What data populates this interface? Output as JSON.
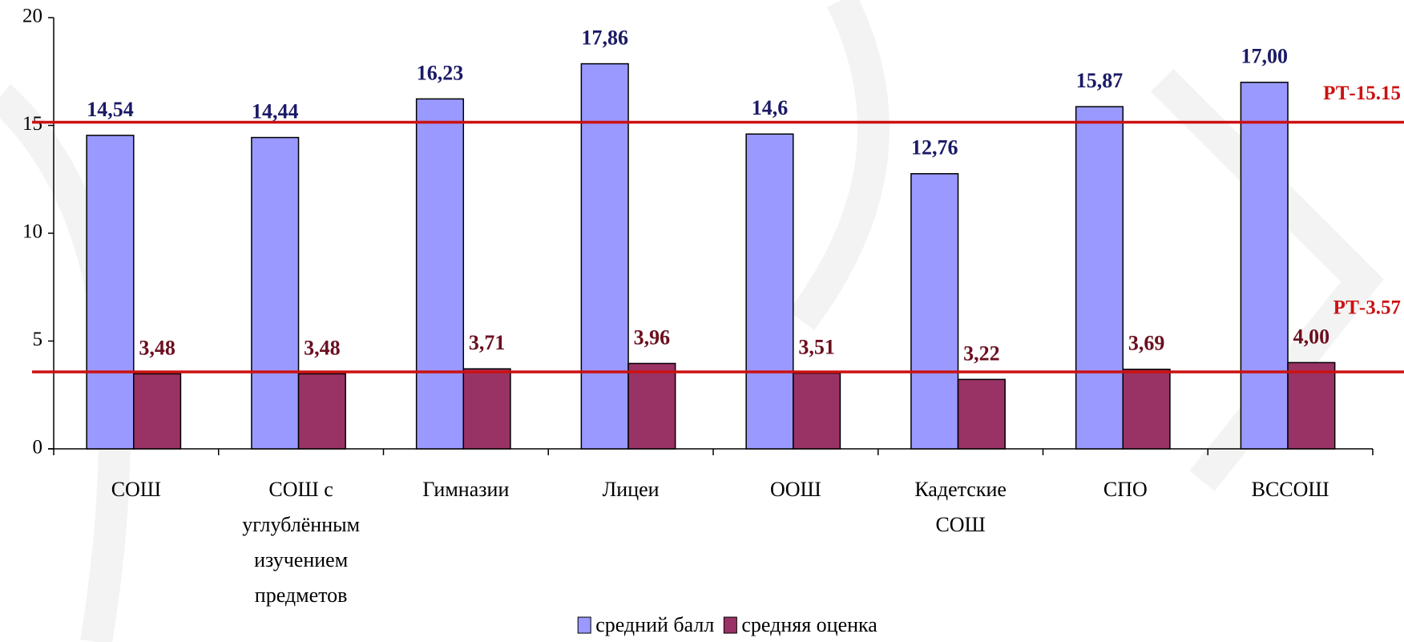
{
  "chart_data": {
    "type": "bar",
    "categories": [
      "СОШ",
      "СОШ с углублённым изучением предметов",
      "Гимназии",
      "Лицеи",
      "ООШ",
      "Кадетские СОШ",
      "СПО",
      "ВССОШ"
    ],
    "series": [
      {
        "name": "средний балл",
        "color": "#9999ff",
        "values": [
          14.54,
          14.44,
          16.23,
          17.86,
          14.6,
          12.76,
          15.87,
          17.0
        ],
        "value_labels": [
          "14,54",
          "14,44",
          "16,23",
          "17,86",
          "14,6",
          "12,76",
          "15,87",
          "17,00"
        ],
        "label_color": "#1a1a66"
      },
      {
        "name": "средняя оценка",
        "color": "#993366",
        "values": [
          3.48,
          3.48,
          3.71,
          3.96,
          3.51,
          3.22,
          3.69,
          4.0
        ],
        "value_labels": [
          "3,48",
          "3,48",
          "3,71",
          "3,96",
          "3,51",
          "3,22",
          "3,69",
          "4,00"
        ],
        "label_color": "#6b0f1f"
      }
    ],
    "ylim": [
      0,
      20
    ],
    "yticks": [
      0,
      5,
      10,
      15,
      20
    ],
    "grid": false,
    "reference_lines": [
      {
        "label": "РТ-15.15",
        "value": 15.15,
        "color": "#cc1111"
      },
      {
        "label": "РТ-3.57",
        "value": 3.57,
        "color": "#cc1111"
      }
    ],
    "legend": "bottom"
  }
}
